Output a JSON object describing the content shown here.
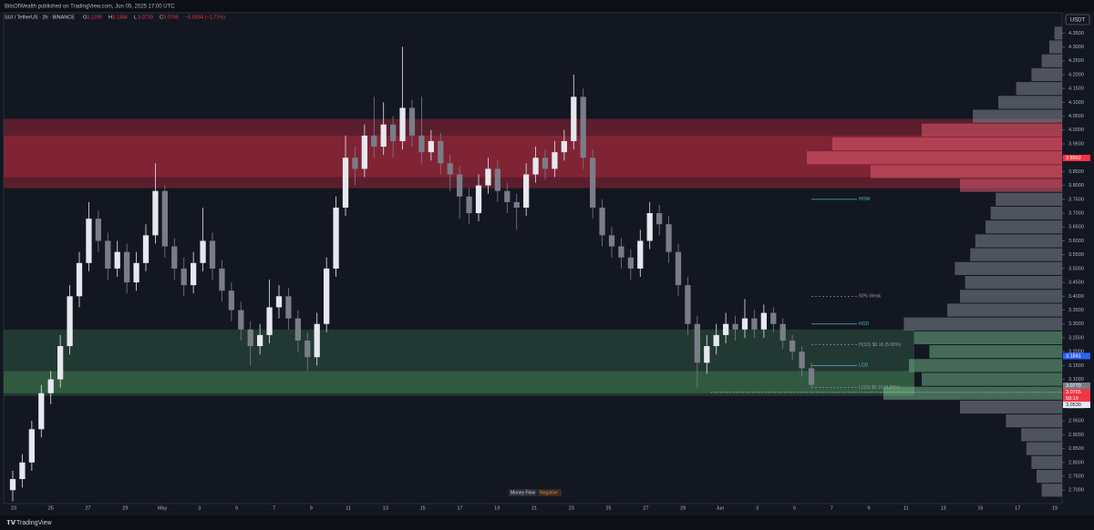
{
  "chart_data": {
    "type": "candlestick",
    "header": "BitsOfWealth published on TradingView.com, Jun 05, 2025 17:00 UTC",
    "symbol": "SUI / TetherUS · 2h · BINANCE",
    "ohlc_prefixes": [
      "O",
      "H",
      "L",
      "C"
    ],
    "ohlc_values": [
      "3.1299",
      "3.1384",
      "3.0730",
      "3.0765"
    ],
    "change": "−0.0534 (−1.71%)",
    "currency": "USDT",
    "up_color": "#e6e8ee",
    "down_color": "#7a7d88",
    "ylim": [
      2.6515,
      4.4234
    ],
    "yticks": [
      {
        "value": 2.7,
        "label": "2.7000"
      },
      {
        "value": 2.75,
        "label": "2.7500"
      },
      {
        "value": 2.8,
        "label": "2.8000"
      },
      {
        "value": 2.85,
        "label": "2.8500"
      },
      {
        "value": 2.9,
        "label": "2.9000"
      },
      {
        "value": 2.95,
        "label": "2.9500"
      },
      {
        "value": 3.0,
        "label": "3.0000"
      },
      {
        "value": 3.05,
        "label": "3.0500"
      },
      {
        "value": 3.1,
        "label": "3.1000"
      },
      {
        "value": 3.15,
        "label": "3.1500"
      },
      {
        "value": 3.2,
        "label": "3.2000"
      },
      {
        "value": 3.25,
        "label": "3.2500"
      },
      {
        "value": 3.3,
        "label": "3.3000"
      },
      {
        "value": 3.35,
        "label": "3.3500"
      },
      {
        "value": 3.4,
        "label": "3.4000"
      },
      {
        "value": 3.45,
        "label": "3.4500"
      },
      {
        "value": 3.5,
        "label": "3.5000"
      },
      {
        "value": 3.55,
        "label": "3.5500"
      },
      {
        "value": 3.6,
        "label": "3.6000"
      },
      {
        "value": 3.65,
        "label": "3.6500"
      },
      {
        "value": 3.7,
        "label": "3.7000"
      },
      {
        "value": 3.75,
        "label": "3.7500"
      },
      {
        "value": 3.8,
        "label": "3.8000"
      },
      {
        "value": 3.85,
        "label": "3.8500"
      },
      {
        "value": 3.9,
        "label": "3.9000"
      },
      {
        "value": 3.95,
        "label": "3.9500"
      },
      {
        "value": 4.0,
        "label": "4.0000"
      },
      {
        "value": 4.05,
        "label": "4.0500"
      },
      {
        "value": 4.1,
        "label": "4.1000"
      },
      {
        "value": 4.15,
        "label": "4.1500"
      },
      {
        "value": 4.2,
        "label": "4.2000"
      },
      {
        "value": 4.25,
        "label": "4.2500"
      },
      {
        "value": 4.3,
        "label": "4.3000"
      },
      {
        "value": 4.35,
        "label": "4.3500"
      }
    ],
    "xtick_labels": [
      "23",
      "25",
      "27",
      "29",
      "May",
      "3",
      "5",
      "7",
      "9",
      "11",
      "13",
      "15",
      "17",
      "19",
      "21",
      "23",
      "25",
      "27",
      "29",
      "Jun",
      "3",
      "5",
      "7",
      "9",
      "11",
      "13",
      "15",
      "17",
      "19"
    ],
    "ohlc": [
      [
        2.7,
        2.77,
        2.66,
        2.74
      ],
      [
        2.74,
        2.83,
        2.71,
        2.8
      ],
      [
        2.8,
        2.95,
        2.77,
        2.92
      ],
      [
        2.92,
        3.08,
        2.89,
        3.05
      ],
      [
        3.05,
        3.13,
        3.01,
        3.1
      ],
      [
        3.1,
        3.26,
        3.07,
        3.22
      ],
      [
        3.22,
        3.44,
        3.19,
        3.4
      ],
      [
        3.4,
        3.56,
        3.36,
        3.52
      ],
      [
        3.52,
        3.74,
        3.49,
        3.68
      ],
      [
        3.68,
        3.71,
        3.56,
        3.6
      ],
      [
        3.6,
        3.63,
        3.46,
        3.5
      ],
      [
        3.5,
        3.6,
        3.47,
        3.56
      ],
      [
        3.56,
        3.59,
        3.41,
        3.45
      ],
      [
        3.45,
        3.56,
        3.42,
        3.52
      ],
      [
        3.52,
        3.66,
        3.49,
        3.62
      ],
      [
        3.62,
        3.88,
        3.59,
        3.78
      ],
      [
        3.78,
        3.8,
        3.54,
        3.58
      ],
      [
        3.58,
        3.61,
        3.46,
        3.5
      ],
      [
        3.5,
        3.54,
        3.4,
        3.44
      ],
      [
        3.44,
        3.56,
        3.41,
        3.52
      ],
      [
        3.52,
        3.72,
        3.49,
        3.6
      ],
      [
        3.6,
        3.63,
        3.46,
        3.5
      ],
      [
        3.5,
        3.53,
        3.38,
        3.42
      ],
      [
        3.42,
        3.45,
        3.31,
        3.35
      ],
      [
        3.35,
        3.38,
        3.24,
        3.28
      ],
      [
        3.28,
        3.31,
        3.15,
        3.22
      ],
      [
        3.22,
        3.3,
        3.19,
        3.26
      ],
      [
        3.26,
        3.46,
        3.23,
        3.36
      ],
      [
        3.36,
        3.44,
        3.32,
        3.4
      ],
      [
        3.4,
        3.43,
        3.28,
        3.32
      ],
      [
        3.32,
        3.35,
        3.2,
        3.24
      ],
      [
        3.24,
        3.27,
        3.13,
        3.18
      ],
      [
        3.18,
        3.34,
        3.15,
        3.3
      ],
      [
        3.3,
        3.54,
        3.27,
        3.5
      ],
      [
        3.5,
        3.76,
        3.47,
        3.72
      ],
      [
        3.72,
        3.98,
        3.69,
        3.9
      ],
      [
        3.9,
        3.94,
        3.8,
        3.86
      ],
      [
        3.86,
        4.02,
        3.83,
        3.98
      ],
      [
        3.98,
        4.12,
        3.9,
        3.94
      ],
      [
        3.94,
        4.1,
        3.91,
        4.02
      ],
      [
        4.02,
        4.05,
        3.9,
        3.96
      ],
      [
        3.96,
        4.3,
        3.93,
        4.08
      ],
      [
        4.08,
        4.11,
        3.94,
        3.98
      ],
      [
        3.98,
        4.12,
        3.88,
        3.92
      ],
      [
        3.92,
        4.0,
        3.89,
        3.96
      ],
      [
        3.96,
        3.99,
        3.84,
        3.88
      ],
      [
        3.88,
        3.91,
        3.78,
        3.84
      ],
      [
        3.84,
        3.87,
        3.68,
        3.76
      ],
      [
        3.76,
        3.79,
        3.66,
        3.7
      ],
      [
        3.7,
        3.84,
        3.67,
        3.8
      ],
      [
        3.8,
        3.9,
        3.77,
        3.86
      ],
      [
        3.86,
        3.89,
        3.74,
        3.78
      ],
      [
        3.78,
        3.81,
        3.7,
        3.74
      ],
      [
        3.74,
        3.77,
        3.64,
        3.72
      ],
      [
        3.72,
        3.88,
        3.69,
        3.84
      ],
      [
        3.84,
        3.94,
        3.81,
        3.9
      ],
      [
        3.9,
        3.93,
        3.82,
        3.86
      ],
      [
        3.86,
        3.96,
        3.83,
        3.92
      ],
      [
        3.92,
        4.0,
        3.89,
        3.96
      ],
      [
        3.96,
        4.2,
        3.93,
        4.12
      ],
      [
        4.12,
        4.15,
        3.86,
        3.9
      ],
      [
        3.9,
        3.93,
        3.68,
        3.72
      ],
      [
        3.72,
        3.75,
        3.58,
        3.62
      ],
      [
        3.62,
        3.65,
        3.54,
        3.58
      ],
      [
        3.58,
        3.61,
        3.5,
        3.54
      ],
      [
        3.54,
        3.57,
        3.46,
        3.5
      ],
      [
        3.5,
        3.64,
        3.47,
        3.6
      ],
      [
        3.6,
        3.74,
        3.57,
        3.7
      ],
      [
        3.7,
        3.73,
        3.62,
        3.66
      ],
      [
        3.66,
        3.69,
        3.52,
        3.56
      ],
      [
        3.56,
        3.59,
        3.4,
        3.44
      ],
      [
        3.44,
        3.47,
        3.26,
        3.3
      ],
      [
        3.3,
        3.33,
        3.07,
        3.16
      ],
      [
        3.16,
        3.26,
        3.12,
        3.22
      ],
      [
        3.22,
        3.3,
        3.19,
        3.26
      ],
      [
        3.26,
        3.34,
        3.23,
        3.3
      ],
      [
        3.3,
        3.33,
        3.24,
        3.28
      ],
      [
        3.28,
        3.39,
        3.25,
        3.32
      ],
      [
        3.32,
        3.35,
        3.25,
        3.28
      ],
      [
        3.28,
        3.37,
        3.25,
        3.34
      ],
      [
        3.34,
        3.36,
        3.27,
        3.3
      ],
      [
        3.3,
        3.32,
        3.21,
        3.24
      ],
      [
        3.24,
        3.26,
        3.17,
        3.2
      ],
      [
        3.2,
        3.22,
        3.11,
        3.14
      ],
      [
        3.14,
        3.16,
        3.07,
        3.08
      ]
    ],
    "zones": [
      {
        "from": 3.79,
        "to": 4.04,
        "color": "rgba(178,40,60,0.45)"
      },
      {
        "from": 3.83,
        "to": 3.98,
        "color": "rgba(200,50,70,0.35)"
      },
      {
        "from": 3.04,
        "to": 3.28,
        "color": "rgba(60,120,80,0.35)"
      },
      {
        "from": 3.05,
        "to": 3.13,
        "color": "rgba(80,150,95,0.35)"
      }
    ],
    "volume_profile": [
      8,
      10,
      12,
      14,
      16,
      22,
      40,
      70,
      55,
      60,
      52,
      58,
      62,
      45,
      40,
      38,
      42,
      36,
      34,
      30,
      28,
      26,
      40,
      75,
      100,
      90,
      55,
      35,
      25,
      18,
      12,
      8,
      5,
      3
    ],
    "levels": [
      {
        "label": "HOW",
        "value": 3.75,
        "style": "solid"
      },
      {
        "label": "50% Weak",
        "value": 3.4,
        "style": "dashed"
      },
      {
        "label": "HOD",
        "value": 3.3,
        "style": "solid"
      },
      {
        "label": "H(1D) $0.16 (5.06%)",
        "value": 3.225,
        "style": "dashed"
      },
      {
        "label": "LOD",
        "value": 3.15,
        "style": "solid"
      },
      {
        "label": "L(1D) $0.10 (3.89%)",
        "value": 3.07,
        "style": "dashed"
      }
    ],
    "price_markers": [
      {
        "value": 3.8992,
        "label": "3.8992",
        "color": "#f23645"
      },
      {
        "value": 3.1841,
        "label": "3.1841",
        "color": "#2962ff"
      },
      {
        "value": 3.077,
        "label": "3.0770",
        "color": "#787b86"
      },
      {
        "value": 3.0765,
        "label": "3.0765",
        "color": "#f23645"
      },
      {
        "value": 3.053,
        "label": "3.0530",
        "color": "#e6e8ee"
      }
    ],
    "countdown": "59:19",
    "badges": [
      "Money Flow",
      "Negative"
    ],
    "footer": "TradingView"
  }
}
